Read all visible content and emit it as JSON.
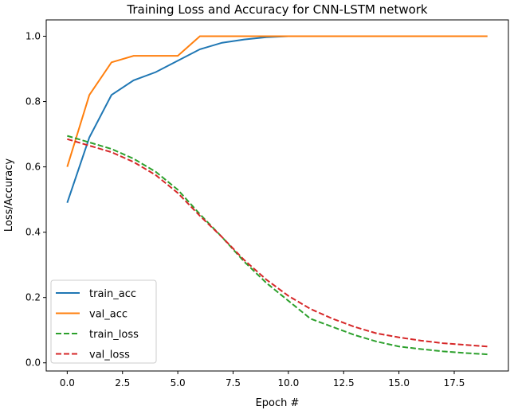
{
  "chart_data": {
    "type": "line",
    "title": "Training Loss and Accuracy for CNN-LSTM network",
    "xlabel": "Epoch #",
    "ylabel": "Loss/Accuracy",
    "xlim": [
      -0.95,
      19.95
    ],
    "ylim": [
      -0.025,
      1.05
    ],
    "xticks": [
      0,
      2.5,
      5,
      7.5,
      10,
      12.5,
      15,
      17.5
    ],
    "xtick_labels": [
      "0.0",
      "2.5",
      "5.0",
      "7.5",
      "10.0",
      "12.5",
      "15.0",
      "17.5"
    ],
    "yticks": [
      0,
      0.2,
      0.4,
      0.6,
      0.8,
      1.0
    ],
    "ytick_labels": [
      "0.0",
      "0.2",
      "0.4",
      "0.6",
      "0.8",
      "1.0"
    ],
    "grid": false,
    "legend_position": "lower-left",
    "x": [
      0,
      1,
      2,
      3,
      4,
      5,
      6,
      7,
      8,
      9,
      10,
      11,
      12,
      13,
      14,
      15,
      16,
      17,
      18,
      19
    ],
    "series": [
      {
        "name": "train_acc",
        "color": "#1f77b4",
        "dash": false,
        "values": [
          0.49,
          0.69,
          0.82,
          0.865,
          0.89,
          0.925,
          0.96,
          0.98,
          0.99,
          0.997,
          1.0,
          1.0,
          1.0,
          1.0,
          1.0,
          1.0,
          1.0,
          1.0,
          1.0,
          1.0
        ]
      },
      {
        "name": "val_acc",
        "color": "#ff7f0e",
        "dash": false,
        "values": [
          0.6,
          0.82,
          0.92,
          0.94,
          0.94,
          0.94,
          1.0,
          1.0,
          1.0,
          1.0,
          1.0,
          1.0,
          1.0,
          1.0,
          1.0,
          1.0,
          1.0,
          1.0,
          1.0,
          1.0
        ]
      },
      {
        "name": "train_loss",
        "color": "#2ca02c",
        "dash": true,
        "values": [
          0.695,
          0.675,
          0.655,
          0.625,
          0.585,
          0.53,
          0.455,
          0.385,
          0.31,
          0.245,
          0.19,
          0.135,
          0.11,
          0.085,
          0.065,
          0.05,
          0.042,
          0.035,
          0.03,
          0.026
        ]
      },
      {
        "name": "val_loss",
        "color": "#d62728",
        "dash": true,
        "values": [
          0.685,
          0.665,
          0.645,
          0.615,
          0.575,
          0.52,
          0.45,
          0.385,
          0.315,
          0.255,
          0.205,
          0.165,
          0.135,
          0.11,
          0.09,
          0.078,
          0.068,
          0.06,
          0.055,
          0.05
        ]
      }
    ]
  }
}
